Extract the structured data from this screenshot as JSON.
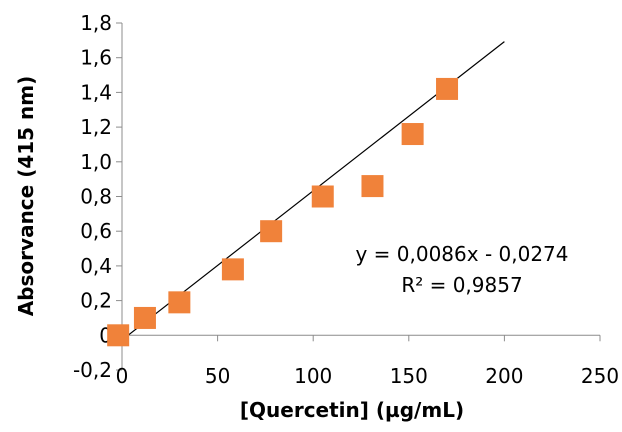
{
  "chart_data": {
    "type": "scatter",
    "title": "",
    "xlabel": "[Quercetin] (µg/mL)",
    "ylabel": "Absorvance (415 nm)",
    "xlim": [
      0,
      250
    ],
    "ylim": [
      -0.2,
      1.8
    ],
    "x_ticks": [
      0,
      50,
      100,
      150,
      200,
      250
    ],
    "x_tick_labels": [
      "0",
      "50",
      "100",
      "150",
      "200",
      "250"
    ],
    "y_ticks": [
      -0.2,
      0,
      0.2,
      0.4,
      0.6,
      0.8,
      1.0,
      1.2,
      1.4,
      1.6,
      1.8
    ],
    "y_tick_labels": [
      "-0,2",
      "0",
      "0,2",
      "0,4",
      "0,6",
      "0,8",
      "1,0",
      "1,2",
      "1,4",
      "1,6",
      "1,8"
    ],
    "grid": false,
    "series": [
      {
        "color": "#f0823a",
        "marker": "square",
        "points": [
          {
            "x": -2,
            "y": 0.0
          },
          {
            "x": 12,
            "y": 0.1
          },
          {
            "x": 30,
            "y": 0.19
          },
          {
            "x": 58,
            "y": 0.38
          },
          {
            "x": 78,
            "y": 0.6
          },
          {
            "x": 105,
            "y": 0.8
          },
          {
            "x": 131,
            "y": 0.86
          },
          {
            "x": 152,
            "y": 1.16
          },
          {
            "x": 170,
            "y": 1.42
          }
        ]
      }
    ],
    "trendline": {
      "type": "linear",
      "slope": 0.0086,
      "intercept": -0.0274,
      "x_range": [
        0,
        200
      ],
      "color": "#000000",
      "equation": "y = 0,0086x - 0,0274",
      "r_squared": "R² = 0,9857"
    }
  }
}
